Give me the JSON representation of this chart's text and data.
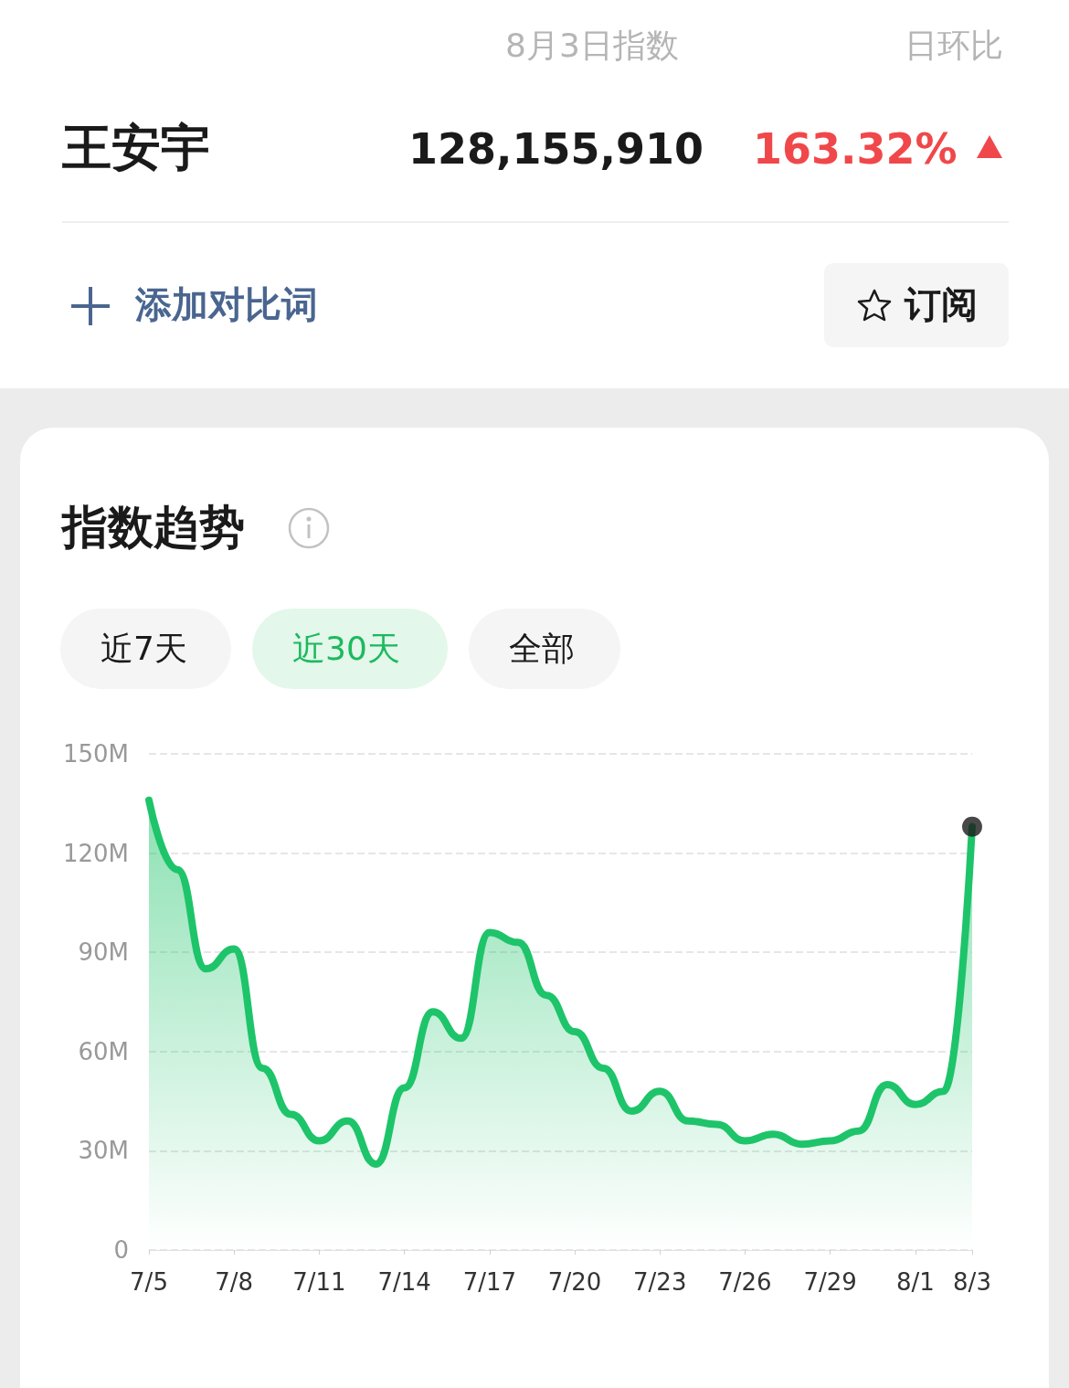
{
  "chart_data": {
    "type": "area",
    "title": "指数趋势",
    "annotations": [
      "8月3日指数",
      "日环比",
      "王安宇",
      "128,155,910",
      "163.32%",
      "添加对比词",
      "订阅",
      "近7天",
      "近30天",
      "全部"
    ],
    "categories": [
      "7/5",
      null,
      null,
      "7/8",
      null,
      null,
      "7/11",
      null,
      null,
      "7/14",
      null,
      null,
      "7/17",
      null,
      null,
      "7/20",
      null,
      null,
      "7/23",
      null,
      null,
      "7/26",
      null,
      null,
      "7/29",
      null,
      null,
      "8/1",
      null,
      "8/3"
    ],
    "series": [
      {
        "color": "#1ec46a",
        "marker": "none",
        "values": [
          136,
          115,
          85,
          91,
          55,
          41,
          33,
          39,
          26,
          49,
          72,
          64,
          96,
          93,
          77,
          66,
          55,
          42,
          48,
          39,
          38,
          33,
          35,
          32,
          33,
          36,
          50,
          44,
          48,
          128
        ]
      },
      {
        "type": "scatter",
        "color": "#1a1a1a",
        "marker": "circle",
        "x": [
          "8/3"
        ],
        "values": [
          128
        ]
      }
    ],
    "ylim": [
      0,
      150
    ],
    "yticks": [
      0,
      {
        "value": 30,
        "label": "30M"
      },
      {
        "value": 60,
        "label": "60M"
      },
      {
        "value": 90,
        "label": "90M"
      },
      {
        "value": 120,
        "label": "120M"
      },
      {
        "value": 150,
        "label": "150M"
      }
    ],
    "grid": "y",
    "line_style": "solid"
  }
}
